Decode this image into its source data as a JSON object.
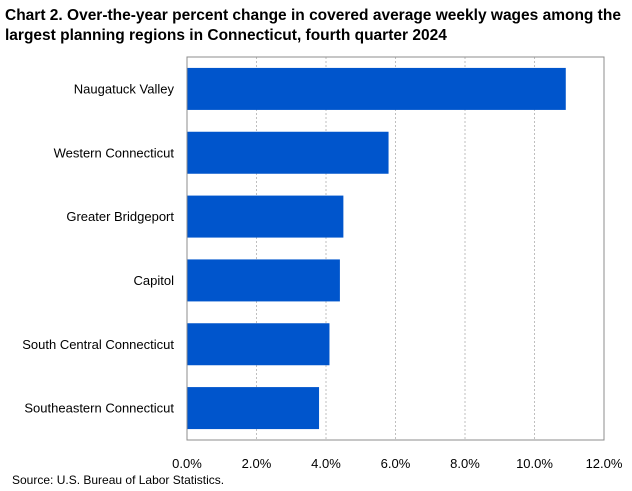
{
  "chart_data": {
    "type": "bar",
    "orientation": "horizontal",
    "title": "Chart 2. Over-the-year percent change in covered average weekly wages among the largest planning regions in Connecticut, fourth quarter 2024",
    "title_lines": [
      "Chart 2. Over-the-year percent change in covered average weekly wages among the",
      "largest planning regions in Connecticut, fourth quarter 2024"
    ],
    "categories": [
      "Naugatuck Valley",
      "Western Connecticut",
      "Greater Bridgeport",
      "Capitol",
      "South Central Connecticut",
      "Southeastern Connecticut"
    ],
    "values": [
      10.9,
      5.8,
      4.5,
      4.4,
      4.1,
      3.8
    ],
    "xlim": [
      0,
      12
    ],
    "x_ticks": [
      0,
      2,
      4,
      6,
      8,
      10,
      12
    ],
    "x_tick_labels": [
      "0.0%",
      "2.0%",
      "4.0%",
      "6.0%",
      "8.0%",
      "10.0%",
      "12.0%"
    ],
    "xlabel": "",
    "ylabel": "",
    "grid": "vertical dashed",
    "bar_color": "#0055cc",
    "source": "Source:  U.S. Bureau of Labor Statistics."
  }
}
